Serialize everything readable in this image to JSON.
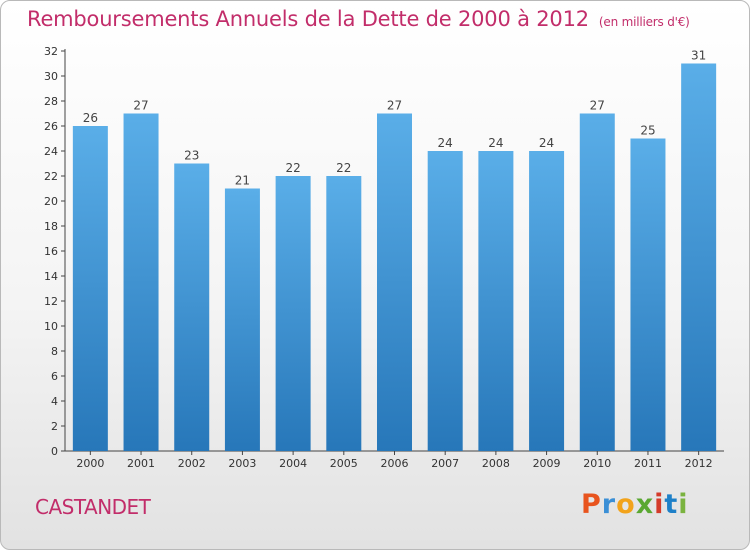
{
  "header": {
    "title": "Remboursements Annuels de la Dette de 2000 à 2012",
    "subtitle": "(en milliers d'€)"
  },
  "footer": {
    "commune": "CASTANDET",
    "logo_text": "Proxiti"
  },
  "colors": {
    "title": "#c22d6a",
    "bar_top": "#5aaee8",
    "bar_bottom": "#2777b9",
    "logo": [
      "#e8541e",
      "#3a8fd6",
      "#f2a31b",
      "#5aa832",
      "#d43b2a",
      "#1e80c8",
      "#7ab33f"
    ]
  },
  "chart_data": {
    "type": "bar",
    "title": "Remboursements Annuels de la Dette de 2000 à 2012",
    "unit": "(en milliers d'€)",
    "categories": [
      "2000",
      "2001",
      "2002",
      "2003",
      "2004",
      "2005",
      "2006",
      "2007",
      "2008",
      "2009",
      "2010",
      "2011",
      "2012"
    ],
    "values": [
      26,
      27,
      23,
      21,
      22,
      22,
      27,
      24,
      24,
      24,
      27,
      25,
      31
    ],
    "ylim": [
      0,
      32
    ],
    "yticks": [
      0,
      2,
      4,
      6,
      8,
      10,
      12,
      14,
      16,
      18,
      20,
      22,
      24,
      26,
      28,
      30,
      32
    ],
    "grid": false,
    "data_labels": true
  }
}
